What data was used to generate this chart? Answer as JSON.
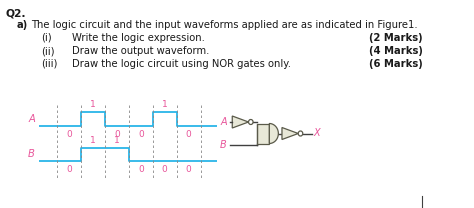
{
  "title_q": "Q2.",
  "text_a": "a)",
  "text_main": "The logic circuit and the input waveforms applied are as indicated in Figure1.",
  "items": [
    [
      "(i)",
      "Write the logic expression.",
      "(2 Marks)"
    ],
    [
      "(ii)",
      "Draw the output waveform.",
      "(4 Marks)"
    ],
    [
      "(iii)",
      "Draw the logic circuit using NOR gates only.",
      "(6 Marks)"
    ]
  ],
  "waveform_A_label": "A",
  "waveform_B_label": "B",
  "waveform_A_values": [
    0,
    1,
    0,
    0,
    1,
    0
  ],
  "waveform_B_values": [
    0,
    1,
    1,
    0,
    0,
    0
  ],
  "waveform_color": "#2ab5e8",
  "label_color": "#e8559a",
  "circuit_A_label": "A",
  "circuit_B_label": "B",
  "circuit_X_label": "X",
  "background_color": "#ffffff",
  "font_color": "#1a1a1a",
  "gate_color": "#e8e8d8",
  "gate_edge": "#5a5a4a",
  "wire_color": "#404040",
  "sep_line_color": "#404040"
}
